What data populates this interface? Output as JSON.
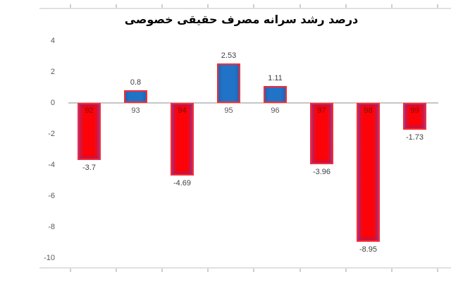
{
  "title": "درصد رشد سرانه مصرف حقیقی خصوصی",
  "colors": {
    "positive_bar_fill": "#2173C8",
    "negative_bar_fill": "#FB0308",
    "bar_border": "#FF2A33",
    "negative_bar_edge_tint": "#A23A9D",
    "zero_line": "#C6C6C6",
    "plot_border_line": "#E0E0E0",
    "tick_mark": "#CFCFCF",
    "axis_label": "#595959",
    "value_label": "#3F3F3F",
    "title_color": "#000000",
    "background": "#FFFFFF"
  },
  "chart_data": {
    "type": "bar",
    "title": "درصد رشد سرانه مصرف حقیقی خصوصی",
    "categories": [
      "92",
      "93",
      "94",
      "95",
      "96",
      "97",
      "98",
      "99"
    ],
    "values": [
      -3.7,
      0.8,
      -4.69,
      2.53,
      1.11,
      -3.96,
      -8.95,
      -1.73
    ],
    "value_labels": [
      "-3.7",
      "0.8",
      "-4.69",
      "2.53",
      "1.11",
      "-3.96",
      "-8.95",
      "-1.73"
    ],
    "y_ticks": [
      4,
      2,
      0,
      -2,
      -4,
      -6,
      -8,
      -10
    ],
    "y_tick_labels": [
      "4",
      "2",
      "0",
      "-2",
      "-4",
      "-6",
      "-8",
      "-10"
    ],
    "ylim": [
      -10,
      4
    ],
    "xlabel": "",
    "ylabel": "",
    "grid": false,
    "legend": false,
    "bar_color_rule": "positive bars blue fill with red border; negative bars red fill with red border and purple edge tint",
    "category_label_position": "at axis (labels overlap tops of negative bars)"
  }
}
